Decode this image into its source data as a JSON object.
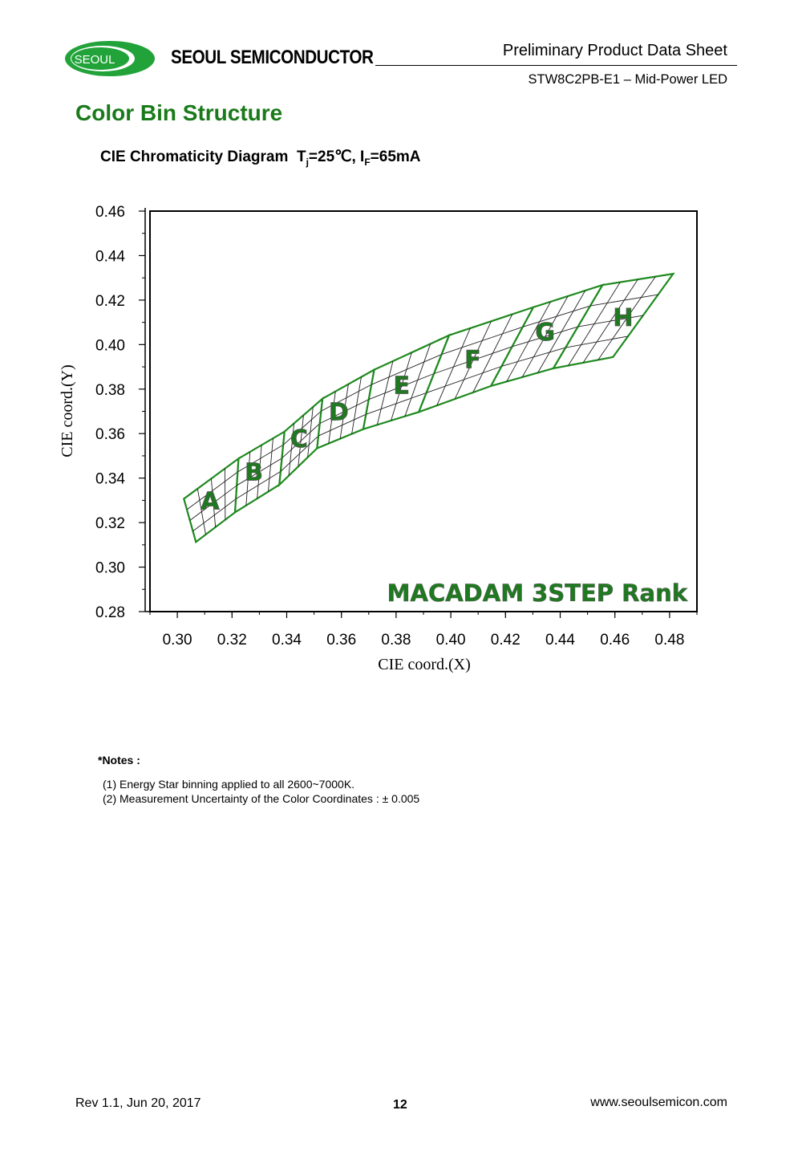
{
  "header": {
    "logo_text": "SEOUL",
    "brand_name": "SEOUL SEMICONDUCTOR",
    "doc_title": "Preliminary Product Data Sheet",
    "doc_subtitle": "STW8C2PB-E1 – Mid-Power LED"
  },
  "section_title": "Color Bin Structure",
  "chart_caption": {
    "main": "CIE Chromaticity Diagram",
    "tj_sym": "T",
    "tj_sub": "j",
    "tj_val": "=25℃, ",
    "if_sym": "I",
    "if_sub": "F",
    "if_val": "=65mA"
  },
  "colors": {
    "brand_green": "#1a7a1a",
    "bin_green": "#1f8a1f",
    "label_green": "#1e7a1e"
  },
  "chart_data": {
    "type": "scatter",
    "xlabel": "CIE coord.(X)",
    "ylabel": "CIE coord.(Y)",
    "xlim": [
      0.29,
      0.49
    ],
    "ylim": [
      0.28,
      0.46
    ],
    "x_ticks": [
      "0.30",
      "0.32",
      "0.34",
      "0.36",
      "0.38",
      "0.40",
      "0.42",
      "0.44",
      "0.46",
      "0.48"
    ],
    "y_ticks": [
      "0.46",
      "0.44",
      "0.42",
      "0.40",
      "0.38",
      "0.36",
      "0.34",
      "0.32",
      "0.30",
      "0.28"
    ],
    "annotation": "MACADAM 3STEP Rank",
    "grid": false,
    "bins": [
      {
        "name": "A",
        "corners": [
          [
            0.3024,
            0.3307
          ],
          [
            0.3224,
            0.3488
          ],
          [
            0.3211,
            0.3246
          ],
          [
            0.3068,
            0.3113
          ]
        ]
      },
      {
        "name": "B",
        "corners": [
          [
            0.3224,
            0.3488
          ],
          [
            0.3392,
            0.3609
          ],
          [
            0.3373,
            0.337
          ],
          [
            0.3211,
            0.3246
          ]
        ]
      },
      {
        "name": "C",
        "corners": [
          [
            0.3392,
            0.3609
          ],
          [
            0.3531,
            0.3757
          ],
          [
            0.3511,
            0.3534
          ],
          [
            0.3373,
            0.337
          ]
        ]
      },
      {
        "name": "D",
        "corners": [
          [
            0.3531,
            0.3757
          ],
          [
            0.372,
            0.3887
          ],
          [
            0.368,
            0.362
          ],
          [
            0.3511,
            0.3534
          ]
        ]
      },
      {
        "name": "E",
        "corners": [
          [
            0.372,
            0.3887
          ],
          [
            0.3994,
            0.4042
          ],
          [
            0.3883,
            0.3697
          ],
          [
            0.368,
            0.362
          ]
        ]
      },
      {
        "name": "F",
        "corners": [
          [
            0.3994,
            0.4042
          ],
          [
            0.4302,
            0.4168
          ],
          [
            0.4147,
            0.3814
          ],
          [
            0.3883,
            0.3697
          ]
        ]
      },
      {
        "name": "G",
        "corners": [
          [
            0.4302,
            0.4168
          ],
          [
            0.4555,
            0.4268
          ],
          [
            0.4375,
            0.3893
          ],
          [
            0.4147,
            0.3814
          ]
        ]
      },
      {
        "name": "H",
        "corners": [
          [
            0.4555,
            0.4268
          ],
          [
            0.4813,
            0.4318
          ],
          [
            0.4593,
            0.3944
          ],
          [
            0.4375,
            0.3893
          ]
        ]
      }
    ],
    "bin_labels": [
      {
        "text": "A",
        "x": 0.312,
        "y": 0.326
      },
      {
        "text": "B",
        "x": 0.328,
        "y": 0.339
      },
      {
        "text": "C",
        "x": 0.3445,
        "y": 0.354
      },
      {
        "text": "D",
        "x": 0.359,
        "y": 0.366
      },
      {
        "text": "E",
        "x": 0.382,
        "y": 0.378
      },
      {
        "text": "F",
        "x": 0.408,
        "y": 0.3895
      },
      {
        "text": "G",
        "x": 0.4345,
        "y": 0.402
      },
      {
        "text": "H",
        "x": 0.463,
        "y": 0.4085
      }
    ]
  },
  "notes": {
    "heading": "*Notes :",
    "lines": [
      "(1) Energy Star binning applied to all 2600~7000K.",
      "(2) Measurement Uncertainty of the Color Coordinates : ± 0.005"
    ]
  },
  "footer": {
    "revision": "Rev 1.1, Jun 20, 2017",
    "page_number": "12",
    "website": "www.seoulsemicon.com"
  }
}
